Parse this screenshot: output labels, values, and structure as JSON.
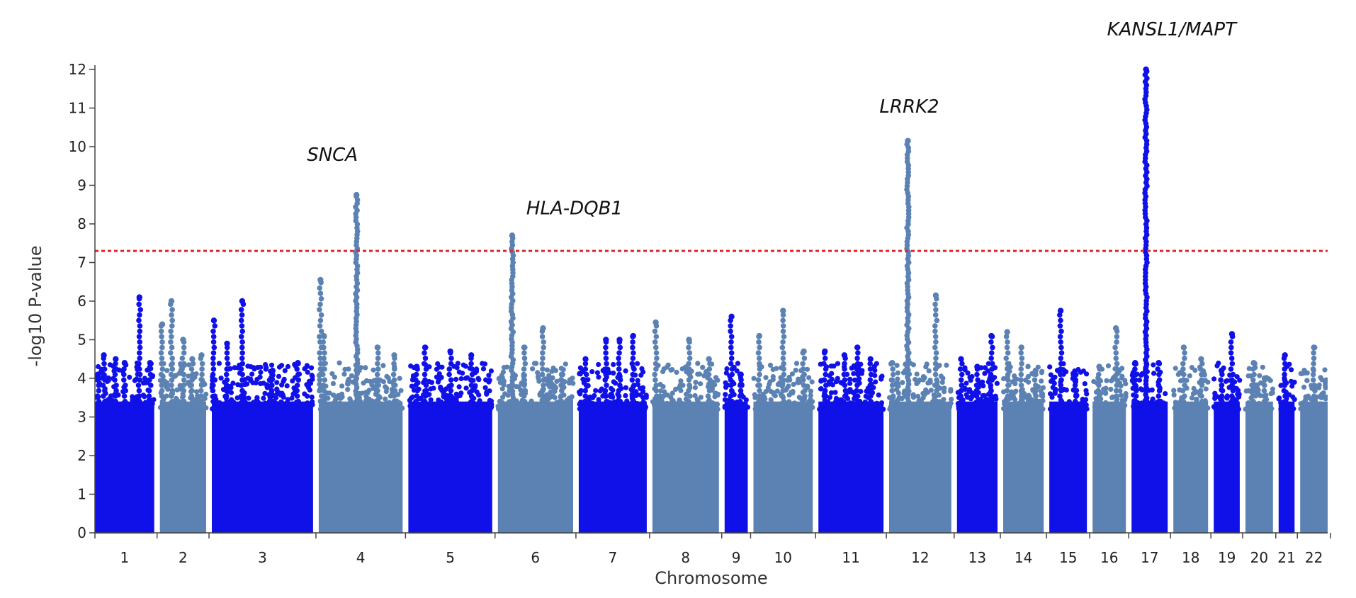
{
  "chart_data": {
    "type": "scatter",
    "subtype": "manhattan",
    "title": "",
    "xlabel": "Chromosome",
    "ylabel": "-log10 P-value",
    "ylim": [
      0,
      12
    ],
    "yticks": [
      0,
      1,
      2,
      3,
      4,
      5,
      6,
      7,
      8,
      9,
      10,
      11,
      12
    ],
    "grid": false,
    "legend": "none",
    "significance_threshold": 7.3,
    "colors": {
      "odd_chromosome": "#1010e8",
      "even_chromosome": "#5b82b3",
      "threshold_line": "#e0252b",
      "axis": "#444444"
    },
    "chromosomes": [
      {
        "label": "1",
        "color": "odd",
        "peaks": [
          [
            0.05,
            4.1
          ],
          [
            0.15,
            4.6
          ],
          [
            0.35,
            4.5
          ],
          [
            0.5,
            4.4
          ],
          [
            0.75,
            6.1
          ],
          [
            0.93,
            4.4
          ]
        ]
      },
      {
        "label": "2",
        "color": "even",
        "peaks": [
          [
            0.05,
            5.4
          ],
          [
            0.25,
            6.0
          ],
          [
            0.5,
            5.0
          ],
          [
            0.7,
            4.5
          ],
          [
            0.9,
            4.6
          ]
        ]
      },
      {
        "label": "3",
        "color": "odd",
        "peaks": [
          [
            0.02,
            5.5
          ],
          [
            0.15,
            4.9
          ],
          [
            0.3,
            6.0
          ],
          [
            0.6,
            4.2
          ],
          [
            0.85,
            4.4
          ]
        ]
      },
      {
        "label": "4",
        "color": "even",
        "peaks": [
          [
            0.02,
            6.55
          ],
          [
            0.06,
            5.1
          ],
          [
            0.45,
            8.75
          ],
          [
            0.7,
            4.8
          ],
          [
            0.9,
            4.6
          ]
        ]
      },
      {
        "label": "5",
        "color": "odd",
        "peaks": [
          [
            0.1,
            4.3
          ],
          [
            0.2,
            4.8
          ],
          [
            0.5,
            4.7
          ],
          [
            0.75,
            4.6
          ]
        ]
      },
      {
        "label": "6",
        "color": "even",
        "peaks": [
          [
            0.19,
            7.7
          ],
          [
            0.35,
            4.8
          ],
          [
            0.6,
            5.3
          ],
          [
            0.85,
            4.1
          ]
        ]
      },
      {
        "label": "7",
        "color": "odd",
        "peaks": [
          [
            0.1,
            4.5
          ],
          [
            0.4,
            5.0
          ],
          [
            0.6,
            5.0
          ],
          [
            0.8,
            5.1
          ]
        ]
      },
      {
        "label": "8",
        "color": "even",
        "peaks": [
          [
            0.05,
            5.45
          ],
          [
            0.55,
            5.0
          ],
          [
            0.85,
            4.5
          ]
        ]
      },
      {
        "label": "9",
        "color": "odd",
        "peaks": [
          [
            0.3,
            5.6
          ],
          [
            0.7,
            4.1
          ]
        ]
      },
      {
        "label": "10",
        "color": "even",
        "peaks": [
          [
            0.1,
            5.1
          ],
          [
            0.5,
            5.75
          ],
          [
            0.85,
            4.7
          ]
        ]
      },
      {
        "label": "11",
        "color": "odd",
        "peaks": [
          [
            0.1,
            4.7
          ],
          [
            0.4,
            4.6
          ],
          [
            0.6,
            4.8
          ],
          [
            0.8,
            4.5
          ]
        ]
      },
      {
        "label": "12",
        "color": "even",
        "peaks": [
          [
            0.05,
            4.4
          ],
          [
            0.3,
            10.15
          ],
          [
            0.75,
            6.15
          ]
        ]
      },
      {
        "label": "13",
        "color": "odd",
        "peaks": [
          [
            0.1,
            4.5
          ],
          [
            0.5,
            4.3
          ],
          [
            0.85,
            5.1
          ]
        ]
      },
      {
        "label": "14",
        "color": "even",
        "peaks": [
          [
            0.1,
            5.2
          ],
          [
            0.45,
            4.8
          ],
          [
            0.8,
            4.2
          ]
        ]
      },
      {
        "label": "15",
        "color": "odd",
        "peaks": [
          [
            0.3,
            5.75
          ],
          [
            0.7,
            4.1
          ]
        ]
      },
      {
        "label": "16",
        "color": "even",
        "peaks": [
          [
            0.2,
            4.3
          ],
          [
            0.7,
            5.3
          ]
        ]
      },
      {
        "label": "17",
        "color": "odd",
        "peaks": [
          [
            0.1,
            4.4
          ],
          [
            0.4,
            12.0
          ],
          [
            0.75,
            4.4
          ]
        ]
      },
      {
        "label": "18",
        "color": "even",
        "peaks": [
          [
            0.3,
            4.8
          ],
          [
            0.8,
            4.5
          ]
        ]
      },
      {
        "label": "19",
        "color": "odd",
        "peaks": [
          [
            0.3,
            4.2
          ],
          [
            0.7,
            5.15
          ]
        ]
      },
      {
        "label": "20",
        "color": "even",
        "peaks": [
          [
            0.3,
            4.4
          ],
          [
            0.7,
            4.0
          ]
        ]
      },
      {
        "label": "21",
        "color": "odd",
        "peaks": [
          [
            0.4,
            4.6
          ]
        ]
      },
      {
        "label": "22",
        "color": "even",
        "peaks": [
          [
            0.5,
            4.8
          ]
        ]
      }
    ],
    "annotations": [
      {
        "text": "SNCA",
        "chromosome": "4",
        "peak_y": 8.75
      },
      {
        "text": "HLA-DQB1",
        "chromosome": "6",
        "peak_y": 7.7
      },
      {
        "text": "LRRK2",
        "chromosome": "12",
        "peak_y": 10.15
      },
      {
        "text": "KANSL1/MAPT",
        "chromosome": "17",
        "peak_y": 12.0
      }
    ]
  }
}
